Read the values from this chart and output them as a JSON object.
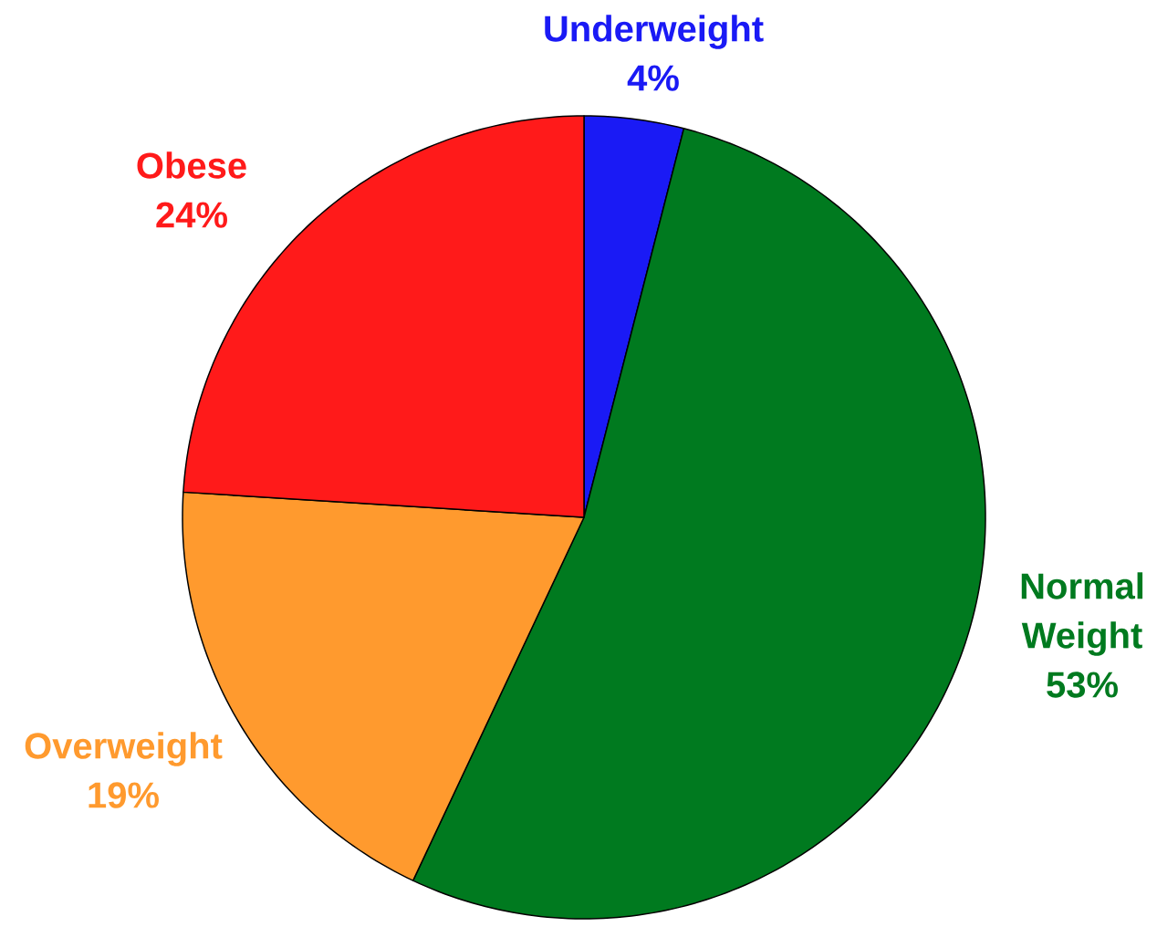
{
  "chart_data": {
    "type": "pie",
    "categories": [
      "Underweight",
      "Normal Weight",
      "Overweight",
      "Obese"
    ],
    "values": [
      4,
      53,
      19,
      24
    ],
    "value_labels": [
      "4%",
      "53%",
      "19%",
      "24%"
    ],
    "colors": [
      "#1a1af5",
      "#007a1f",
      "#ff9a2e",
      "#ff1a1a"
    ]
  }
}
